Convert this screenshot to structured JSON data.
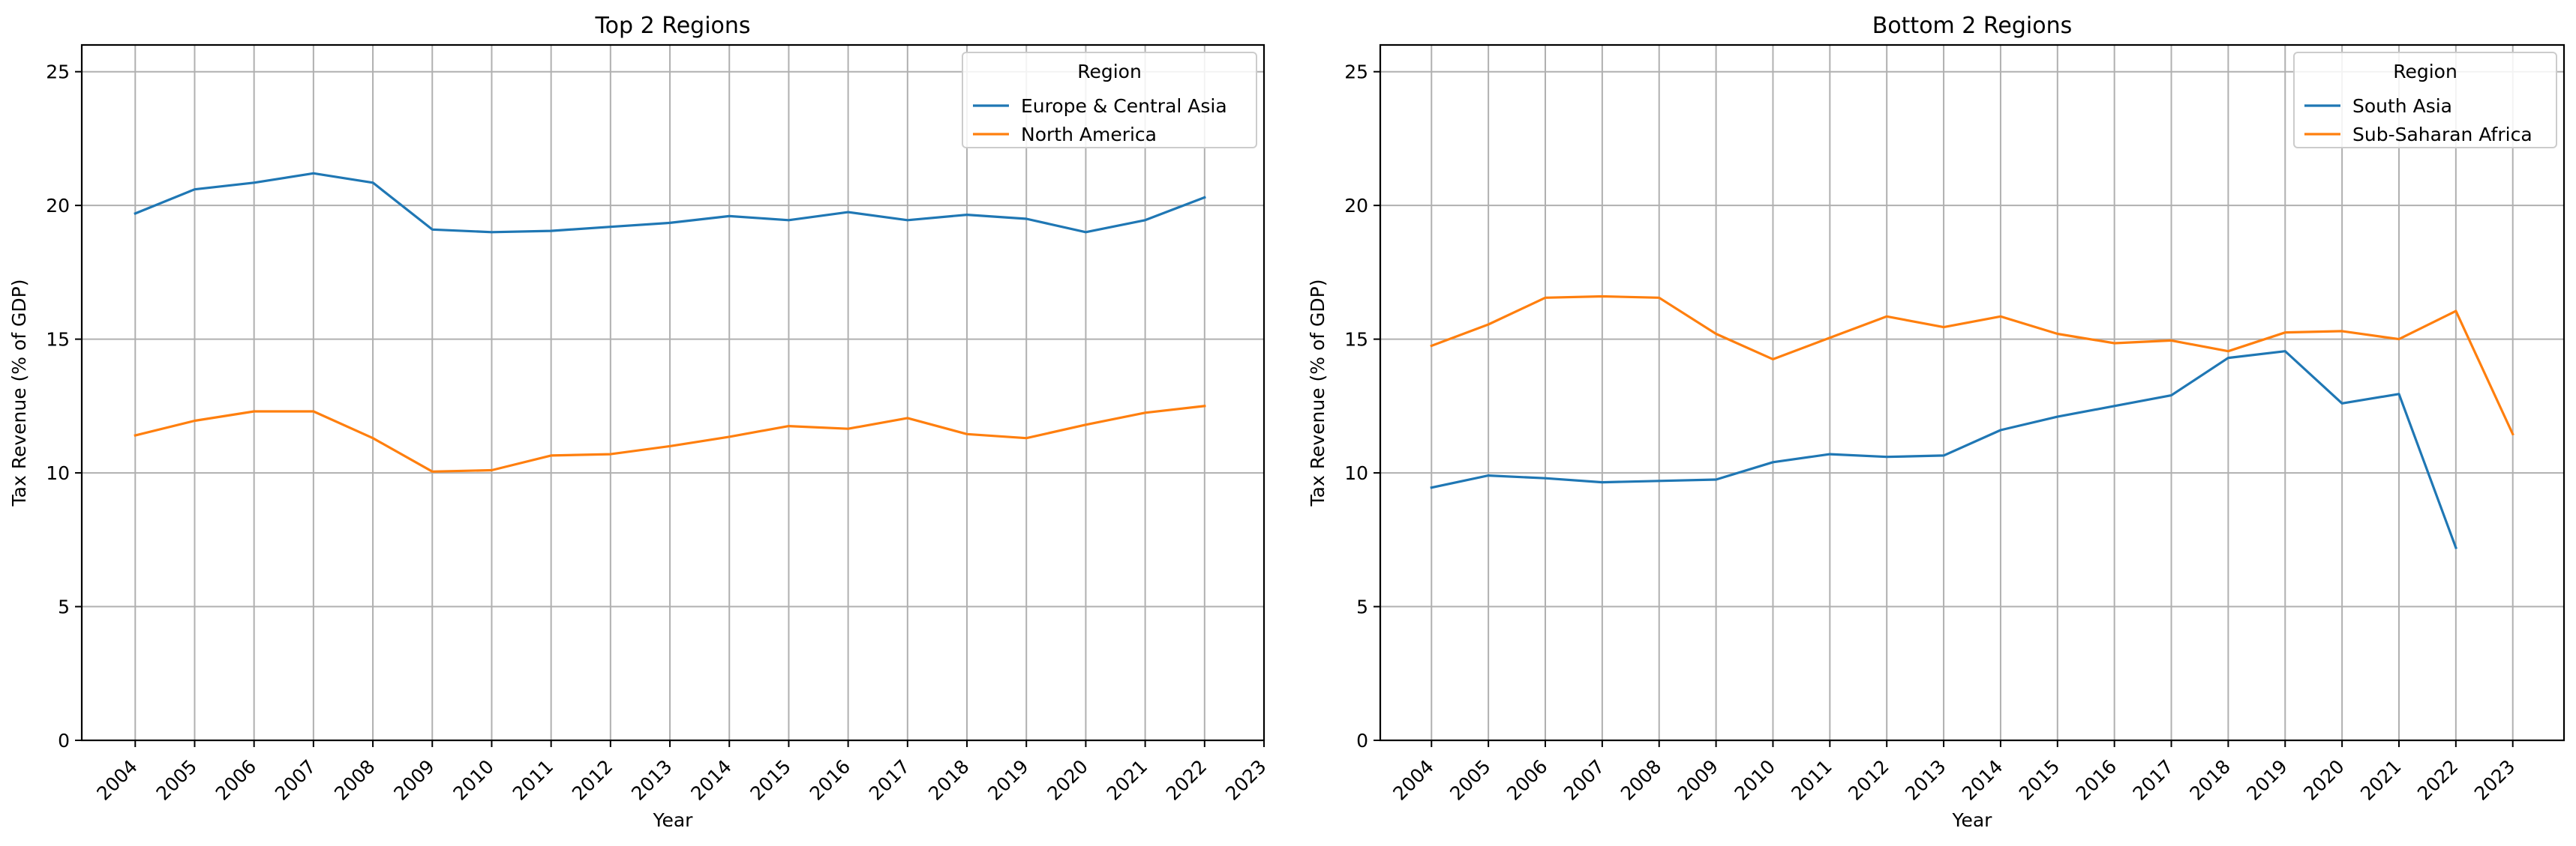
{
  "colors": {
    "series_1": "#1f77b4",
    "series_2": "#ff7f0e",
    "grid": "#b0b0b0",
    "axes": "#000000"
  },
  "chart_data": [
    {
      "type": "line",
      "title": "Top 2 Regions",
      "xlabel": "Year",
      "ylabel": "Tax Revenue (% of GDP)",
      "ylim": [
        0,
        26
      ],
      "yticks": [
        0,
        5,
        10,
        15,
        20,
        25
      ],
      "xlim": [
        2003.1,
        2023.0
      ],
      "x": [
        "2004",
        "2005",
        "2006",
        "2007",
        "2008",
        "2009",
        "2010",
        "2011",
        "2012",
        "2013",
        "2014",
        "2015",
        "2016",
        "2017",
        "2018",
        "2019",
        "2020",
        "2021",
        "2022",
        "2023"
      ],
      "grid": true,
      "legend": {
        "title": "Region",
        "placement": "top-right"
      },
      "series": [
        {
          "name": "Europe & Central Asia",
          "color": "#1f77b4",
          "values": [
            19.7,
            20.6,
            20.85,
            21.2,
            20.85,
            19.1,
            19.0,
            19.05,
            19.2,
            19.35,
            19.6,
            19.45,
            19.75,
            19.45,
            19.65,
            19.5,
            19.0,
            19.45,
            20.3,
            null
          ]
        },
        {
          "name": "North America",
          "color": "#ff7f0e",
          "values": [
            11.4,
            11.95,
            12.3,
            12.3,
            11.3,
            10.05,
            10.1,
            10.65,
            10.7,
            11.0,
            11.35,
            11.75,
            11.65,
            12.05,
            11.45,
            11.3,
            11.8,
            12.25,
            12.5,
            null
          ]
        }
      ]
    },
    {
      "type": "line",
      "title": "Bottom 2 Regions",
      "xlabel": "Year",
      "ylabel": "Tax Revenue (% of GDP)",
      "ylim": [
        0,
        26
      ],
      "yticks": [
        0,
        5,
        10,
        15,
        20,
        25
      ],
      "xlim": [
        2003.1,
        2023.9
      ],
      "x": [
        "2004",
        "2005",
        "2006",
        "2007",
        "2008",
        "2009",
        "2010",
        "2011",
        "2012",
        "2013",
        "2014",
        "2015",
        "2016",
        "2017",
        "2018",
        "2019",
        "2020",
        "2021",
        "2022",
        "2023"
      ],
      "grid": true,
      "legend": {
        "title": "Region",
        "placement": "top-right"
      },
      "series": [
        {
          "name": "South Asia",
          "color": "#1f77b4",
          "values": [
            9.45,
            9.9,
            9.8,
            9.65,
            9.7,
            9.75,
            10.4,
            10.7,
            10.6,
            10.65,
            11.6,
            12.1,
            12.5,
            12.9,
            14.3,
            14.55,
            12.6,
            12.95,
            7.2,
            null
          ]
        },
        {
          "name": "Sub-Saharan Africa",
          "color": "#ff7f0e",
          "values": [
            14.75,
            15.55,
            16.55,
            16.6,
            16.55,
            15.2,
            14.25,
            15.05,
            15.85,
            15.45,
            15.85,
            15.2,
            14.85,
            14.95,
            14.55,
            15.25,
            15.3,
            15.0,
            16.05,
            11.45
          ]
        }
      ]
    }
  ]
}
